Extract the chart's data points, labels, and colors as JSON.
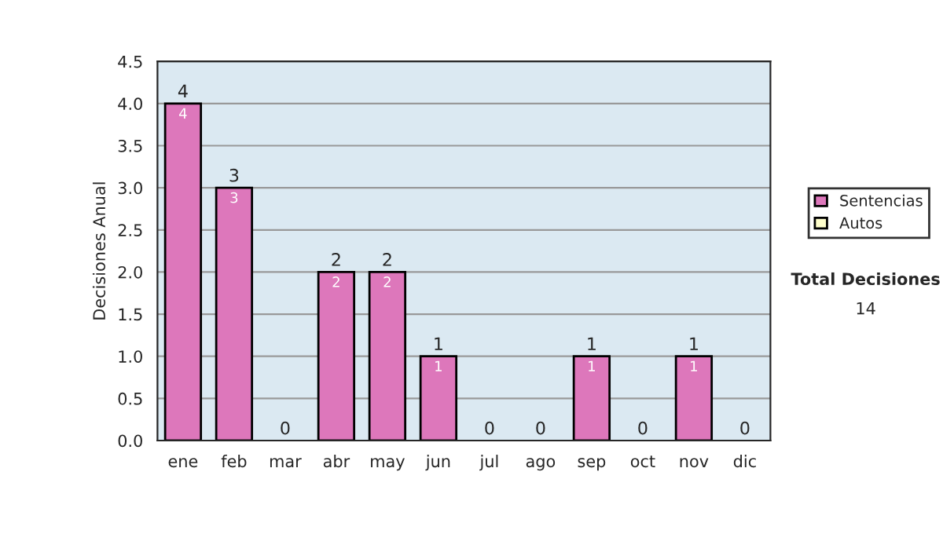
{
  "chart_data": {
    "type": "bar",
    "stacked": true,
    "ylabel": "Decisiones Anual",
    "categories": [
      "ene",
      "feb",
      "mar",
      "abr",
      "may",
      "jun",
      "jul",
      "ago",
      "sep",
      "oct",
      "nov",
      "dic"
    ],
    "series": [
      {
        "name": "Sentencias",
        "color": "#dd77bb",
        "values": [
          4,
          3,
          0,
          2,
          2,
          1,
          0,
          0,
          1,
          0,
          1,
          0
        ],
        "value_labels": [
          "4",
          "3",
          null,
          "2",
          "2",
          "1",
          null,
          null,
          "1",
          null,
          "1",
          null
        ]
      },
      {
        "name": "Autos",
        "color": "#ffffcc",
        "values": [
          0,
          0,
          0,
          0,
          0,
          0,
          0,
          0,
          0,
          0,
          0,
          0
        ]
      }
    ],
    "totals": [
      "4",
      "3",
      "0",
      "2",
      "2",
      "1",
      "0",
      "0",
      "1",
      "0",
      "1",
      "0"
    ],
    "ylim": [
      0,
      4.5
    ],
    "yticks": [
      {
        "value": 0,
        "label": "0.0"
      },
      {
        "value": 0.5,
        "label": "0.5"
      },
      {
        "value": 1,
        "label": "1.0"
      },
      {
        "value": 1.5,
        "label": "1.5"
      },
      {
        "value": 2,
        "label": "2.0"
      },
      {
        "value": 2.5,
        "label": "2.5"
      },
      {
        "value": 3,
        "label": "3.0"
      },
      {
        "value": 3.5,
        "label": "3.5"
      },
      {
        "value": 4,
        "label": "4.0"
      },
      {
        "value": 4.5,
        "label": "4.5"
      }
    ],
    "grid": "y",
    "legend": "right",
    "annotations": [
      "Total Decisiones",
      "14"
    ]
  }
}
